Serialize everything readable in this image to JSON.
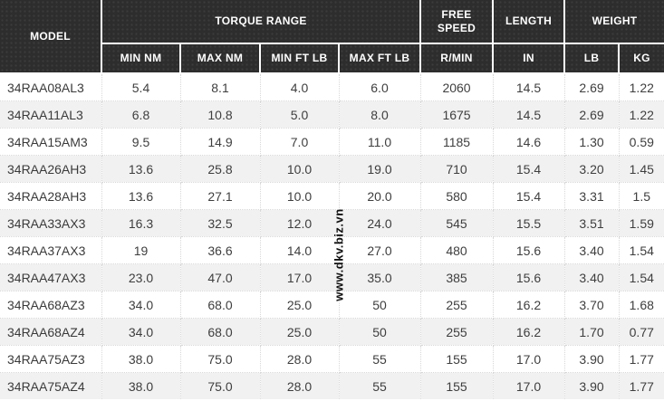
{
  "watermark": "www.dkv.biz.vn",
  "colors": {
    "header_bg": "#2d2d2d",
    "header_text": "#ffffff",
    "header_border": "#ffffff",
    "row_alt_bg": "#f1f1f1",
    "body_text": "#3e3e3e",
    "cell_border_dotted": "#d8d8d8"
  },
  "table": {
    "header": {
      "model": "MODEL",
      "torque_range": "TORQUE RANGE",
      "free_speed": "FREE SPEED",
      "length": "LENGTH",
      "weight": "WEIGHT",
      "sub": {
        "min_nm": "MIN NM",
        "max_nm": "MAX NM",
        "min_ft_lb": "MIN FT LB",
        "max_ft_lb": "MAX FT LB",
        "r_min": "R/MIN",
        "in": "IN",
        "lb": "LB",
        "kg": "KG"
      }
    },
    "rows": [
      [
        "34RAA08AL3",
        "5.4",
        "8.1",
        "4.0",
        "6.0",
        "2060",
        "14.5",
        "2.69",
        "1.22"
      ],
      [
        "34RAA11AL3",
        "6.8",
        "10.8",
        "5.0",
        "8.0",
        "1675",
        "14.5",
        "2.69",
        "1.22"
      ],
      [
        "34RAA15AM3",
        "9.5",
        "14.9",
        "7.0",
        "11.0",
        "1185",
        "14.6",
        "1.30",
        "0.59"
      ],
      [
        "34RAA26AH3",
        "13.6",
        "25.8",
        "10.0",
        "19.0",
        "710",
        "15.4",
        "3.20",
        "1.45"
      ],
      [
        "34RAA28AH3",
        "13.6",
        "27.1",
        "10.0",
        "20.0",
        "580",
        "15.4",
        "3.31",
        "1.5"
      ],
      [
        "34RAA33AX3",
        "16.3",
        "32.5",
        "12.0",
        "24.0",
        "545",
        "15.5",
        "3.51",
        "1.59"
      ],
      [
        "34RAA37AX3",
        "19",
        "36.6",
        "14.0",
        "27.0",
        "480",
        "15.6",
        "3.40",
        "1.54"
      ],
      [
        "34RAA47AX3",
        "23.0",
        "47.0",
        "17.0",
        "35.0",
        "385",
        "15.6",
        "3.40",
        "1.54"
      ],
      [
        "34RAA68AZ3",
        "34.0",
        "68.0",
        "25.0",
        "50",
        "255",
        "16.2",
        "3.70",
        "1.68"
      ],
      [
        "34RAA68AZ4",
        "34.0",
        "68.0",
        "25.0",
        "50",
        "255",
        "16.2",
        "1.70",
        "0.77"
      ],
      [
        "34RAA75AZ3",
        "38.0",
        "75.0",
        "28.0",
        "55",
        "155",
        "17.0",
        "3.90",
        "1.77"
      ],
      [
        "34RAA75AZ4",
        "38.0",
        "75.0",
        "28.0",
        "55",
        "155",
        "17.0",
        "3.90",
        "1.77"
      ]
    ]
  }
}
